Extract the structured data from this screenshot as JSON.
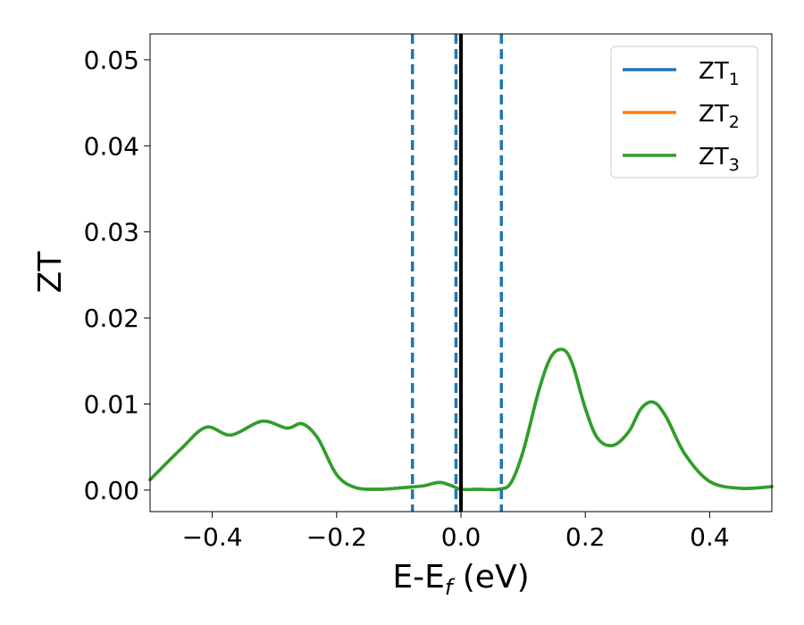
{
  "chart_data": {
    "type": "line",
    "xlabel": "E-E",
    "xlabel_sub": "f",
    "xlabel_unit": " (eV)",
    "ylabel": "ZT",
    "xlim": [
      -0.5,
      0.5
    ],
    "ylim": [
      -0.0025,
      0.053
    ],
    "xticks": [
      -0.4,
      -0.2,
      0.0,
      0.2,
      0.4
    ],
    "xtick_labels": [
      "−0.4",
      "−0.2",
      "0.0",
      "0.2",
      "0.4"
    ],
    "yticks": [
      0.0,
      0.01,
      0.02,
      0.03,
      0.04,
      0.05
    ],
    "ytick_labels": [
      "0.00",
      "0.01",
      "0.02",
      "0.03",
      "0.04",
      "0.05"
    ],
    "grid": false,
    "legend": "top-right",
    "series": [
      {
        "name": "ZT",
        "sub": "1",
        "color": "#1f77b4",
        "x": [
          -0.5,
          -0.45,
          -0.41,
          -0.37,
          -0.32,
          -0.28,
          -0.255,
          -0.23,
          -0.2,
          -0.17,
          -0.13,
          -0.09,
          -0.06,
          -0.035,
          -0.015,
          0.0,
          0.03,
          0.06,
          0.08,
          0.1,
          0.125,
          0.145,
          0.165,
          0.18,
          0.2,
          0.22,
          0.245,
          0.27,
          0.29,
          0.31,
          0.33,
          0.36,
          0.4,
          0.45,
          0.5
        ],
        "y": [
          0.0012,
          0.0048,
          0.0073,
          0.0064,
          0.008,
          0.0072,
          0.0077,
          0.006,
          0.0018,
          0.0003,
          0.0001,
          0.0003,
          0.0005,
          0.0009,
          0.0005,
          0.0001,
          0.0001,
          0.0001,
          0.0008,
          0.0045,
          0.0115,
          0.0155,
          0.0163,
          0.0145,
          0.0095,
          0.006,
          0.0052,
          0.0068,
          0.0095,
          0.0102,
          0.0085,
          0.0042,
          0.001,
          0.0002,
          0.0004
        ]
      },
      {
        "name": "ZT",
        "sub": "2",
        "color": "#ff7f0e",
        "x": [
          -0.5,
          -0.45,
          -0.41,
          -0.37,
          -0.32,
          -0.28,
          -0.255,
          -0.23,
          -0.2,
          -0.17,
          -0.13,
          -0.09,
          -0.06,
          -0.035,
          -0.015,
          0.0,
          0.03,
          0.06,
          0.08,
          0.1,
          0.125,
          0.145,
          0.165,
          0.18,
          0.2,
          0.22,
          0.245,
          0.27,
          0.29,
          0.31,
          0.33,
          0.36,
          0.4,
          0.45,
          0.5
        ],
        "y": [
          0.0012,
          0.0048,
          0.0073,
          0.0064,
          0.008,
          0.0072,
          0.0077,
          0.006,
          0.0018,
          0.0003,
          0.0001,
          0.0003,
          0.0005,
          0.0009,
          0.0005,
          0.0001,
          0.0001,
          0.0001,
          0.0008,
          0.0045,
          0.0115,
          0.0155,
          0.0163,
          0.0145,
          0.0095,
          0.006,
          0.0052,
          0.0068,
          0.0095,
          0.0102,
          0.0085,
          0.0042,
          0.001,
          0.0002,
          0.0004
        ]
      },
      {
        "name": "ZT",
        "sub": "3",
        "color": "#2ca02c",
        "x": [
          -0.5,
          -0.45,
          -0.41,
          -0.37,
          -0.32,
          -0.28,
          -0.255,
          -0.23,
          -0.2,
          -0.17,
          -0.13,
          -0.09,
          -0.06,
          -0.035,
          -0.015,
          0.0,
          0.03,
          0.06,
          0.08,
          0.1,
          0.125,
          0.145,
          0.165,
          0.18,
          0.2,
          0.22,
          0.245,
          0.27,
          0.29,
          0.31,
          0.33,
          0.36,
          0.4,
          0.45,
          0.5
        ],
        "y": [
          0.0012,
          0.0048,
          0.0073,
          0.0064,
          0.008,
          0.0072,
          0.0077,
          0.006,
          0.0018,
          0.0003,
          0.0001,
          0.0003,
          0.0005,
          0.0009,
          0.0005,
          0.0001,
          0.0001,
          0.0001,
          0.0008,
          0.0045,
          0.0115,
          0.0155,
          0.0163,
          0.0145,
          0.0095,
          0.006,
          0.0052,
          0.0068,
          0.0095,
          0.0102,
          0.0085,
          0.0042,
          0.001,
          0.0002,
          0.0004
        ]
      }
    ],
    "vlines": [
      {
        "x": -0.078,
        "style": "dashed",
        "color": "#1f77b4"
      },
      {
        "x": -0.008,
        "style": "dashed",
        "color": "#1f77b4"
      },
      {
        "x": 0.065,
        "style": "dashed",
        "color": "#1f77b4"
      },
      {
        "x": 0.0,
        "style": "solid",
        "color": "#000000"
      }
    ]
  }
}
